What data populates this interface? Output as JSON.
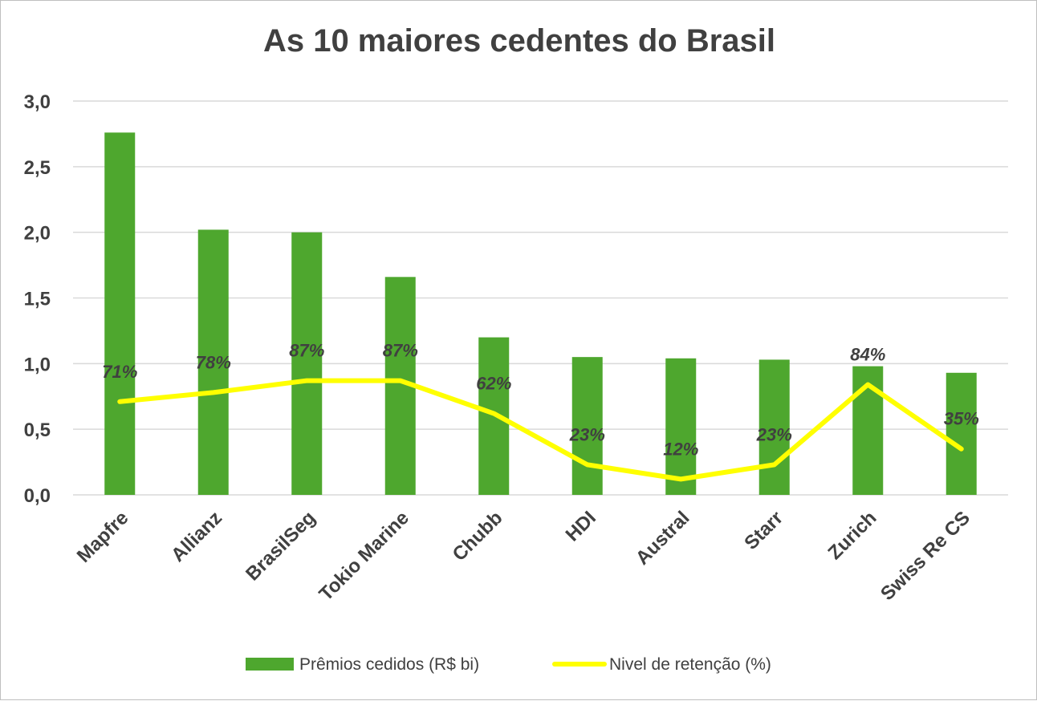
{
  "chart_data": {
    "type": "bar",
    "title": "As 10 maiores cedentes do Brasil",
    "categories": [
      "Mapfre",
      "Allianz",
      "BrasilSeg",
      "Tokio Marine",
      "Chubb",
      "HDI",
      "Austral",
      "Starr",
      "Zurich",
      "Swiss Re CS"
    ],
    "series": [
      {
        "name": "Prêmios cedidos (R$ bi)",
        "type": "bar",
        "color": "#4ea72e",
        "values": [
          2.76,
          2.02,
          2.0,
          1.66,
          1.2,
          1.05,
          1.04,
          1.03,
          0.98,
          0.93
        ]
      },
      {
        "name": "Nivel de retenção (%)",
        "type": "line",
        "color": "#ffff00",
        "values": [
          0.71,
          0.78,
          0.87,
          0.87,
          0.62,
          0.23,
          0.12,
          0.23,
          0.84,
          0.35
        ],
        "labels": [
          "71%",
          "78%",
          "87%",
          "87%",
          "62%",
          "23%",
          "12%",
          "23%",
          "84%",
          "35%"
        ]
      }
    ],
    "y_ticks": [
      "0,0",
      "0,5",
      "1,0",
      "1,5",
      "2,0",
      "2,5",
      "3,0"
    ],
    "ylim": [
      0,
      3.0
    ],
    "ystep": 0.5,
    "grid": true,
    "legend_position": "bottom",
    "xlabel": "",
    "ylabel": ""
  }
}
